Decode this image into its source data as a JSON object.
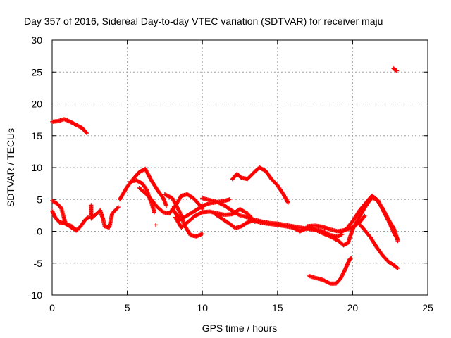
{
  "chart_data": {
    "type": "scatter",
    "title": "Day 357 of 2016, Sidereal Day-to-day VTEC variation (SDTVAR) for receiver maju",
    "xlabel": "GPS time / hours",
    "ylabel": "SDTVAR / TECUs",
    "xlim": [
      0,
      25
    ],
    "ylim": [
      -10,
      30
    ],
    "x_ticks": [
      0,
      5,
      10,
      15,
      20,
      25
    ],
    "y_ticks": [
      -10,
      -5,
      0,
      5,
      10,
      15,
      20,
      25,
      30
    ],
    "grid": true,
    "legend": "none",
    "marker": "+",
    "marker_color": "#ff0000",
    "series": [
      {
        "name": "s1",
        "points": [
          [
            0,
            17.2
          ],
          [
            0.4,
            17.3
          ],
          [
            0.8,
            17.6
          ],
          [
            1.2,
            17.2
          ],
          [
            1.6,
            16.7
          ],
          [
            2.0,
            16.2
          ],
          [
            2.3,
            15.4
          ]
        ]
      },
      {
        "name": "s2",
        "points": [
          [
            0,
            4.8
          ],
          [
            0.3,
            4.4
          ],
          [
            0.6,
            3.7
          ],
          [
            0.9,
            1.2
          ],
          [
            1.3,
            0.8
          ],
          [
            1.6,
            0.1
          ],
          [
            1.9,
            0.8
          ],
          [
            2.2,
            1.8
          ],
          [
            2.4,
            2.2
          ]
        ]
      },
      {
        "name": "s3",
        "points": [
          [
            0,
            3.2
          ],
          [
            0.2,
            2.2
          ],
          [
            0.5,
            1.4
          ],
          [
            0.8,
            1.3
          ],
          [
            1.1,
            0.9
          ],
          [
            1.4,
            0.4
          ],
          [
            1.7,
            0.2
          ]
        ]
      },
      {
        "name": "s4",
        "points": [
          [
            2.6,
            4.1
          ],
          [
            2.6,
            3.1
          ],
          [
            2.6,
            2.0
          ],
          [
            3.2,
            3.3
          ],
          [
            3.4,
            1.8
          ],
          [
            3.5,
            0.8
          ],
          [
            3.8,
            0.6
          ],
          [
            4.0,
            2.8
          ],
          [
            4.4,
            3.8
          ]
        ]
      },
      {
        "name": "s5",
        "points": [
          [
            4.5,
            5.0
          ],
          [
            5.0,
            7.0
          ],
          [
            5.5,
            8.5
          ],
          [
            5.8,
            9.3
          ],
          [
            6.2,
            9.8
          ],
          [
            6.6,
            8.0
          ],
          [
            7.0,
            6.5
          ],
          [
            7.4,
            5.2
          ],
          [
            7.6,
            4.0
          ]
        ]
      },
      {
        "name": "s6",
        "points": [
          [
            5.2,
            7.8
          ],
          [
            5.6,
            8.0
          ],
          [
            6.0,
            7.5
          ],
          [
            6.3,
            6.5
          ],
          [
            6.6,
            4.5
          ],
          [
            6.8,
            3.0
          ]
        ]
      },
      {
        "name": "s7",
        "points": [
          [
            5.8,
            6.8
          ],
          [
            6.2,
            6.0
          ],
          [
            6.6,
            5.0
          ],
          [
            7.0,
            3.8
          ],
          [
            7.4,
            3.0
          ],
          [
            7.8,
            2.8
          ],
          [
            8.2,
            4.0
          ],
          [
            8.6,
            5.6
          ],
          [
            9.0,
            5.8
          ],
          [
            9.4,
            5.2
          ],
          [
            9.8,
            4.2
          ],
          [
            10.0,
            3.5
          ]
        ]
      },
      {
        "name": "s8",
        "points": [
          [
            6.9,
            1.0
          ]
        ]
      },
      {
        "name": "s9",
        "points": [
          [
            7.5,
            5.8
          ],
          [
            8.0,
            5.2
          ],
          [
            8.5,
            3.0
          ],
          [
            8.8,
            1.0
          ],
          [
            9.2,
            -0.6
          ],
          [
            9.6,
            -0.8
          ],
          [
            10.0,
            -0.4
          ]
        ]
      },
      {
        "name": "s10",
        "points": [
          [
            8.0,
            3.6
          ],
          [
            8.5,
            1.8
          ],
          [
            9.0,
            2.5
          ],
          [
            9.5,
            3.2
          ],
          [
            10.0,
            4.0
          ],
          [
            10.5,
            4.4
          ],
          [
            11.0,
            4.6
          ],
          [
            11.5,
            4.8
          ],
          [
            11.8,
            5.0
          ]
        ]
      },
      {
        "name": "s11",
        "points": [
          [
            8.2,
            2.2
          ],
          [
            8.6,
            0.6
          ],
          [
            9.0,
            1.4
          ],
          [
            9.5,
            2.4
          ],
          [
            10.0,
            3.0
          ],
          [
            10.5,
            3.1
          ],
          [
            11.0,
            2.8
          ],
          [
            11.5,
            2.6
          ],
          [
            12.0,
            2.7
          ],
          [
            12.5,
            3.5
          ],
          [
            13.0,
            2.8
          ],
          [
            13.5,
            1.5
          ]
        ]
      },
      {
        "name": "s12",
        "points": [
          [
            10.0,
            5.2
          ],
          [
            10.5,
            4.9
          ],
          [
            11.0,
            4.6
          ],
          [
            11.5,
            4.0
          ],
          [
            12.0,
            3.2
          ],
          [
            12.5,
            2.5
          ],
          [
            13.0,
            2.2
          ],
          [
            13.4,
            1.8
          ]
        ]
      },
      {
        "name": "s13",
        "points": [
          [
            10.8,
            2.8
          ],
          [
            11.3,
            2.0
          ],
          [
            11.8,
            1.2
          ],
          [
            12.2,
            0.5
          ],
          [
            12.6,
            0.8
          ],
          [
            13.0,
            1.4
          ],
          [
            13.5,
            1.8
          ],
          [
            14.0,
            1.5
          ],
          [
            14.5,
            1.3
          ],
          [
            15.0,
            1.2
          ],
          [
            15.5,
            1.0
          ],
          [
            16.0,
            0.8
          ],
          [
            16.5,
            0.6
          ],
          [
            17.0,
            0.4
          ],
          [
            17.5,
            0.2
          ]
        ]
      },
      {
        "name": "s14",
        "points": [
          [
            12.0,
            8.2
          ],
          [
            12.3,
            9.0
          ],
          [
            12.6,
            8.4
          ],
          [
            13.0,
            8.2
          ],
          [
            13.5,
            9.4
          ],
          [
            13.8,
            10.0
          ],
          [
            14.2,
            9.5
          ],
          [
            14.6,
            8.2
          ],
          [
            15.0,
            7.2
          ],
          [
            15.4,
            5.8
          ],
          [
            15.7,
            4.5
          ]
        ]
      },
      {
        "name": "s15",
        "points": [
          [
            13.5,
            1.6
          ],
          [
            14.0,
            1.3
          ],
          [
            15.0,
            1.0
          ],
          [
            16.0,
            0.6
          ],
          [
            16.5,
            0.0
          ],
          [
            17.0,
            0.5
          ],
          [
            17.5,
            0.3
          ],
          [
            18.0,
            0.0
          ],
          [
            18.5,
            -0.6
          ],
          [
            19.0,
            -0.8
          ],
          [
            19.3,
            -0.5
          ]
        ]
      },
      {
        "name": "s16",
        "points": [
          [
            17.0,
            0.8
          ],
          [
            17.5,
            0.9
          ],
          [
            18.0,
            0.7
          ],
          [
            18.5,
            0.3
          ],
          [
            19.0,
            0.0
          ],
          [
            19.5,
            0.2
          ],
          [
            20.0,
            0.6
          ],
          [
            20.5,
            1.5
          ],
          [
            20.8,
            2.4
          ]
        ]
      },
      {
        "name": "s17",
        "points": [
          [
            17.2,
            0.6
          ],
          [
            18.0,
            -0.3
          ],
          [
            18.5,
            -0.8
          ],
          [
            19.0,
            -1.4
          ],
          [
            19.4,
            -2.2
          ],
          [
            19.7,
            -1.8
          ],
          [
            20.0,
            0.3
          ],
          [
            20.5,
            2.5
          ],
          [
            21.0,
            4.4
          ],
          [
            21.3,
            5.3
          ],
          [
            21.6,
            5.0
          ],
          [
            22.0,
            3.6
          ],
          [
            22.4,
            1.8
          ],
          [
            22.8,
            0.2
          ],
          [
            23.0,
            -1.5
          ]
        ]
      },
      {
        "name": "s18",
        "points": [
          [
            19.2,
            -0.2
          ],
          [
            19.6,
            0.4
          ],
          [
            20.0,
            1.6
          ],
          [
            20.5,
            3.4
          ],
          [
            21.0,
            4.8
          ],
          [
            21.3,
            5.6
          ],
          [
            21.7,
            4.8
          ],
          [
            22.0,
            3.4
          ],
          [
            22.4,
            1.6
          ],
          [
            22.8,
            -0.5
          ],
          [
            23.0,
            -1.2
          ]
        ]
      },
      {
        "name": "s19",
        "points": [
          [
            20.5,
            1.0
          ],
          [
            20.8,
            0.2
          ],
          [
            21.2,
            -1.0
          ],
          [
            21.6,
            -2.5
          ],
          [
            22.0,
            -3.8
          ],
          [
            22.4,
            -4.8
          ],
          [
            22.8,
            -5.4
          ],
          [
            23.0,
            -5.8
          ]
        ]
      },
      {
        "name": "s20",
        "points": [
          [
            17.1,
            -7.0
          ],
          [
            17.5,
            -7.3
          ],
          [
            18.0,
            -7.6
          ],
          [
            18.5,
            -8.2
          ],
          [
            18.9,
            -8.2
          ],
          [
            19.2,
            -7.4
          ],
          [
            19.5,
            -6.0
          ],
          [
            19.8,
            -4.4
          ],
          [
            19.9,
            -4.2
          ]
        ]
      },
      {
        "name": "s21",
        "points": [
          [
            22.7,
            25.6
          ],
          [
            22.8,
            25.4
          ],
          [
            22.95,
            25.2
          ]
        ]
      }
    ]
  }
}
